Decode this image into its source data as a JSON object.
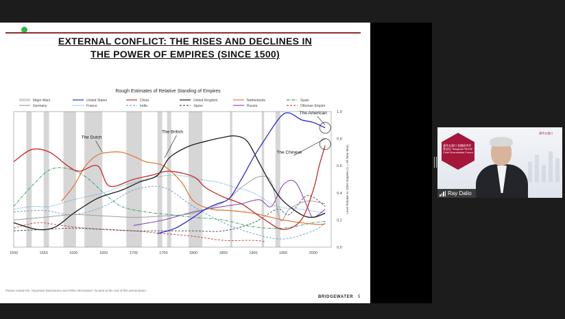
{
  "slide": {
    "title_line1": "EXTERNAL CONFLICT: THE RISES AND DECLINES IN",
    "title_line2": "THE POWER OF EMPIRES (SINCE 1500)",
    "disclaimer": "Please review the \"Important Disclosures and Other Information\" located at the end of this presentation.",
    "brand": "BRIDGEWATER",
    "page_number": "5"
  },
  "video": {
    "participant_name": "Ray Dalio",
    "hex_text": "清华五道口 金融经济学家论坛 Tsinghua PBCSF Chief Economists Forum",
    "logo_text": "清华五道口"
  },
  "chart_data": {
    "type": "line",
    "title": "Rough Estimates of Relative Standing of Empires",
    "ylabel": "Level Relative to Other Empires (1 = All-Time Max)",
    "xlim": [
      1500,
      2030
    ],
    "ylim": [
      0,
      1
    ],
    "x_ticks": [
      "1500",
      "1550",
      "1600",
      "1650",
      "1700",
      "1750",
      "1800",
      "1850",
      "1900",
      "1950",
      "2000"
    ],
    "y_ticks": [
      "0.0",
      "0.2",
      "0.4",
      "0.6",
      "0.8",
      "1.0"
    ],
    "legend_position": "top",
    "wars_label": "Major Wars",
    "wars": [
      [
        1521,
        1530
      ],
      [
        1550,
        1559
      ],
      [
        1583,
        1604
      ],
      [
        1618,
        1648
      ],
      [
        1688,
        1714
      ],
      [
        1740,
        1748
      ],
      [
        1756,
        1763
      ],
      [
        1792,
        1815
      ],
      [
        1861,
        1865
      ],
      [
        1914,
        1918
      ],
      [
        1937,
        1945
      ]
    ],
    "annotations": [
      {
        "text": "The Dutch",
        "x": 1630,
        "y": 0.8
      },
      {
        "text": "The British",
        "x": 1765,
        "y": 0.84
      },
      {
        "text": "The American",
        "x": 2000,
        "y": 0.98
      },
      {
        "text": "The Chinese",
        "x": 1960,
        "y": 0.69
      }
    ],
    "series": [
      {
        "name": "United States",
        "color": "#2a2ad0",
        "style": "solid",
        "width": 1.3,
        "x": [
          1740,
          1770,
          1800,
          1820,
          1840,
          1860,
          1880,
          1900,
          1920,
          1945,
          1960,
          1980,
          2000,
          2020
        ],
        "y": [
          0.1,
          0.14,
          0.22,
          0.28,
          0.32,
          0.36,
          0.5,
          0.66,
          0.8,
          0.96,
          0.99,
          0.94,
          0.92,
          0.88
        ]
      },
      {
        "name": "China",
        "color": "#c62828",
        "style": "solid",
        "width": 1.3,
        "x": [
          1500,
          1530,
          1560,
          1590,
          1610,
          1640,
          1660,
          1700,
          1730,
          1760,
          1800,
          1820,
          1850,
          1880,
          1900,
          1920,
          1950,
          1980,
          2000,
          2010,
          2020
        ],
        "y": [
          0.63,
          0.72,
          0.7,
          0.6,
          0.56,
          0.6,
          0.45,
          0.5,
          0.53,
          0.56,
          0.52,
          0.44,
          0.37,
          0.32,
          0.26,
          0.2,
          0.13,
          0.2,
          0.42,
          0.6,
          0.75
        ]
      },
      {
        "name": "United Kingdom",
        "color": "#1a1a1a",
        "style": "solid",
        "width": 1.3,
        "x": [
          1500,
          1540,
          1570,
          1600,
          1640,
          1680,
          1710,
          1740,
          1760,
          1790,
          1820,
          1850,
          1870,
          1890,
          1910,
          1930,
          1950,
          1980,
          2000,
          2020
        ],
        "y": [
          0.18,
          0.13,
          0.15,
          0.25,
          0.36,
          0.42,
          0.48,
          0.53,
          0.66,
          0.74,
          0.78,
          0.81,
          0.82,
          0.78,
          0.62,
          0.46,
          0.34,
          0.24,
          0.22,
          0.25
        ]
      },
      {
        "name": "Netherlands",
        "color": "#e07b39",
        "style": "solid",
        "width": 1.3,
        "x": [
          1580,
          1600,
          1620,
          1640,
          1660,
          1680,
          1700,
          1720,
          1750,
          1780,
          1800,
          1830,
          1860,
          1900,
          1950,
          2000,
          2020
        ],
        "y": [
          0.34,
          0.45,
          0.6,
          0.68,
          0.7,
          0.7,
          0.67,
          0.63,
          0.6,
          0.48,
          0.34,
          0.28,
          0.27,
          0.25,
          0.2,
          0.17,
          0.17
        ]
      },
      {
        "name": "Spain",
        "color": "#2e9a5a",
        "style": "dashdot",
        "width": 1,
        "x": [
          1500,
          1530,
          1560,
          1590,
          1620,
          1650,
          1680,
          1720,
          1760,
          1800,
          1850,
          1900,
          1950,
          2000,
          2020
        ],
        "y": [
          0.3,
          0.45,
          0.57,
          0.58,
          0.52,
          0.4,
          0.3,
          0.26,
          0.24,
          0.22,
          0.2,
          0.15,
          0.14,
          0.18,
          0.19
        ]
      },
      {
        "name": "Germany",
        "color": "#9e9e9e",
        "style": "solid",
        "width": 1,
        "x": [
          1500,
          1550,
          1600,
          1650,
          1700,
          1750,
          1800,
          1850,
          1880,
          1910,
          1930,
          1945,
          1960,
          1990,
          2020
        ],
        "y": [
          0.2,
          0.22,
          0.24,
          0.23,
          0.22,
          0.23,
          0.25,
          0.33,
          0.44,
          0.52,
          0.48,
          0.2,
          0.28,
          0.34,
          0.32
        ]
      },
      {
        "name": "France",
        "color": "#3aa0c8",
        "style": "dotted",
        "width": 1.1,
        "x": [
          1500,
          1530,
          1560,
          1600,
          1650,
          1680,
          1720,
          1760,
          1790,
          1810,
          1840,
          1870,
          1900,
          1940,
          1980,
          2020
        ],
        "y": [
          0.28,
          0.3,
          0.3,
          0.35,
          0.4,
          0.45,
          0.5,
          0.53,
          0.52,
          0.5,
          0.48,
          0.44,
          0.4,
          0.3,
          0.28,
          0.25
        ]
      },
      {
        "name": "India",
        "color": "#6aa5d6",
        "style": "dashed",
        "width": 1,
        "x": [
          1500,
          1550,
          1600,
          1650,
          1700,
          1750,
          1800,
          1850,
          1900,
          1950,
          2000,
          2020
        ],
        "y": [
          0.26,
          0.27,
          0.24,
          0.3,
          0.42,
          0.44,
          0.3,
          0.18,
          0.1,
          0.06,
          0.12,
          0.18
        ]
      },
      {
        "name": "Japan",
        "color": "#555555",
        "style": "dashed",
        "width": 1,
        "x": [
          1500,
          1550,
          1600,
          1650,
          1700,
          1750,
          1800,
          1850,
          1900,
          1940,
          1960,
          1990,
          2020
        ],
        "y": [
          0.12,
          0.13,
          0.14,
          0.13,
          0.12,
          0.12,
          0.12,
          0.12,
          0.18,
          0.28,
          0.24,
          0.38,
          0.3
        ]
      },
      {
        "name": "Russia",
        "color": "#8a46b4",
        "style": "solid",
        "width": 1.1,
        "x": [
          1700,
          1750,
          1800,
          1850,
          1880,
          1910,
          1930,
          1950,
          1970,
          1990,
          2000,
          2020
        ],
        "y": [
          0.16,
          0.2,
          0.26,
          0.3,
          0.32,
          0.35,
          0.3,
          0.46,
          0.48,
          0.3,
          0.22,
          0.28
        ]
      },
      {
        "name": "Ottoman Empire",
        "color": "#c94a4a",
        "style": "dashed",
        "width": 1,
        "x": [
          1500,
          1540,
          1580,
          1620,
          1660,
          1700,
          1750,
          1800,
          1850,
          1900,
          1920
        ],
        "y": [
          0.14,
          0.18,
          0.16,
          0.14,
          0.13,
          0.12,
          0.1,
          0.08,
          0.05,
          0.05,
          0.04
        ]
      }
    ]
  }
}
